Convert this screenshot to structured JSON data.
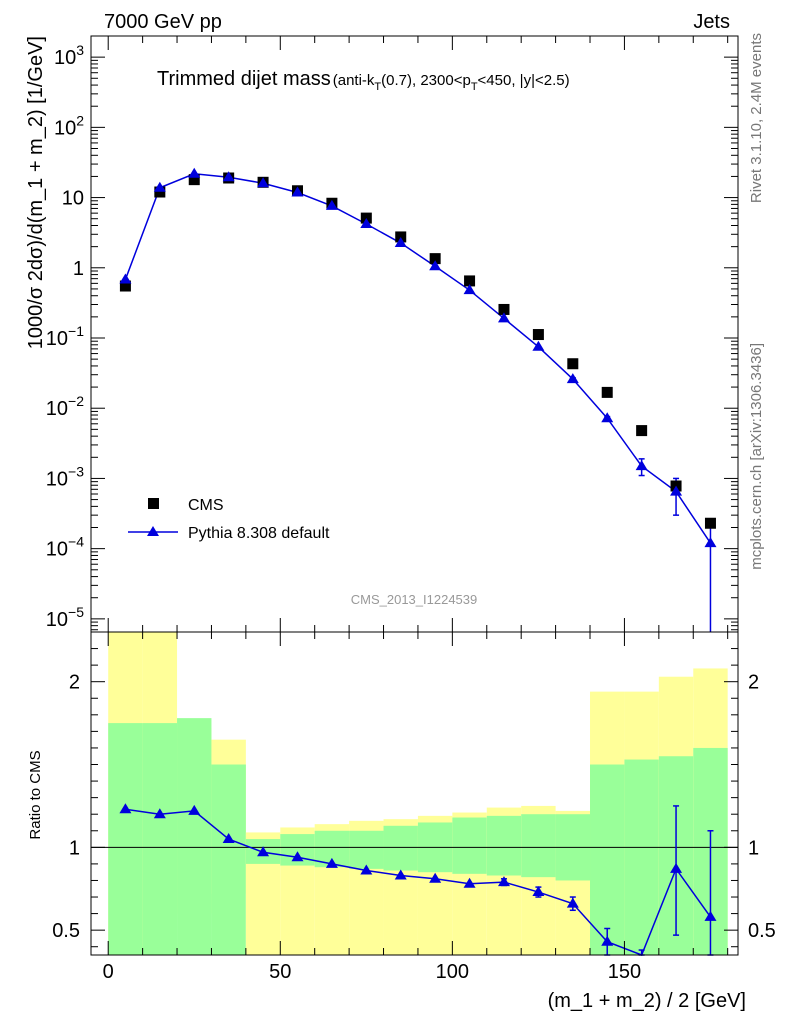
{
  "header": {
    "left": "7000 GeV pp",
    "right": "Jets"
  },
  "side_labels": {
    "rivet": "Rivet 3.1.10,  2.4M events",
    "mcplots": "mcplots.cern.ch [arXiv:1306.3436]"
  },
  "watermark": "CMS_2013_I1224539",
  "chart_data": [
    {
      "type": "scatter",
      "title_main": "Trimmed dijet mass",
      "title_sub": {
        "p1": "(anti-k",
        "s1": "T",
        "p2": "(0.7), 2300<p",
        "s2": "T",
        "p3": "<450, |y|<2.5)"
      },
      "ylabel": "1000/σ 2dσ)/d(m_1 + m_2) [1/GeV]",
      "y_scale": "log",
      "ylim": [
        6.5e-06,
        2000
      ],
      "xlim": [
        -5,
        183
      ],
      "y_ticks": [
        {
          "value": 1000,
          "label": "10",
          "exp": "3"
        },
        {
          "value": 100,
          "label": "10",
          "exp": "2"
        },
        {
          "value": 10,
          "label": "10",
          "exp": ""
        },
        {
          "value": 1,
          "label": "1",
          "exp": ""
        },
        {
          "value": 0.1,
          "label": "10",
          "exp": "−1"
        },
        {
          "value": 0.01,
          "label": "10",
          "exp": "−2"
        },
        {
          "value": 0.001,
          "label": "10",
          "exp": "−3"
        },
        {
          "value": 0.0001,
          "label": "10",
          "exp": "−4"
        },
        {
          "value": 1e-05,
          "label": "10",
          "exp": "−5"
        }
      ],
      "legend": {
        "position": "bottom-left",
        "cms": "CMS",
        "pythia": "Pythia 8.308 default"
      },
      "x": [
        5,
        15,
        25,
        35,
        45,
        55,
        65,
        75,
        85,
        95,
        105,
        115,
        125,
        135,
        145,
        155,
        165,
        175
      ],
      "series": [
        {
          "name": "CMS",
          "marker": "square",
          "color": "#000000",
          "values": [
            0.55,
            12,
            18,
            19,
            16.5,
            12.5,
            8.3,
            5.1,
            2.75,
            1.35,
            0.65,
            0.255,
            0.112,
            0.043,
            0.0168,
            0.0048,
            0.00078,
            0.00023
          ]
        },
        {
          "name": "Pythia 8.308 default",
          "marker": "triangle",
          "color": "#0000dd",
          "values": [
            0.68,
            13.8,
            21.8,
            19.5,
            16,
            11.8,
            7.6,
            4.2,
            2.25,
            1.05,
            0.48,
            0.19,
            0.075,
            0.026,
            0.0072,
            0.0015,
            0.00065,
            0.00012
          ],
          "err_low": [
            0,
            0,
            0,
            0,
            0,
            0,
            0,
            0,
            0,
            0,
            0,
            0,
            0,
            0.0012,
            0.0004,
            0.0004,
            0.00035,
            0.00012
          ],
          "err_high": [
            0,
            0,
            0,
            0,
            0,
            0,
            0,
            0,
            0,
            0,
            0,
            0,
            0,
            0.0012,
            0.0004,
            0.0004,
            0.00035,
            0.0001
          ]
        }
      ]
    },
    {
      "type": "line",
      "ylabel": "Ratio to CMS",
      "xlabel": "(m_1 + m_2) / 2 [GeV]",
      "ylim": [
        0.35,
        2.3
      ],
      "xlim": [
        -5,
        183
      ],
      "x_ticks": [
        0,
        50,
        100,
        150
      ],
      "y_ticks": [
        0.5,
        1,
        2
      ],
      "bands": {
        "edges": [
          0,
          10,
          20,
          30,
          40,
          50,
          60,
          70,
          80,
          90,
          100,
          110,
          120,
          130,
          140,
          150,
          160,
          170,
          180
        ],
        "green_low": [
          0.35,
          0.35,
          0.35,
          0.35,
          0.9,
          0.89,
          0.88,
          0.87,
          0.86,
          0.85,
          0.84,
          0.83,
          0.82,
          0.8,
          0.35,
          0.35,
          0.35,
          0.35
        ],
        "green_high": [
          1.75,
          1.75,
          1.78,
          1.5,
          1.05,
          1.08,
          1.1,
          1.1,
          1.13,
          1.15,
          1.18,
          1.19,
          1.2,
          1.2,
          1.5,
          1.53,
          1.55,
          1.6
        ],
        "yellow_low": [
          0.35,
          0.35,
          0.6,
          0.72,
          0.35,
          0.35,
          0.35,
          0.35,
          0.35,
          0.35,
          0.35,
          0.35,
          0.35,
          0.35,
          0.35,
          0.35,
          0.35,
          0.35
        ],
        "yellow_high": [
          2.3,
          2.3,
          1.72,
          1.65,
          1.09,
          1.12,
          1.14,
          1.16,
          1.17,
          1.19,
          1.21,
          1.24,
          1.25,
          1.22,
          1.94,
          1.94,
          2.03,
          2.08
        ],
        "green_color": "#99ff99",
        "yellow_color": "#ffff99"
      },
      "series": [
        {
          "name": "Pythia 8.308 default",
          "x": [
            5,
            15,
            25,
            35,
            45,
            55,
            65,
            75,
            85,
            95,
            105,
            115,
            125,
            135,
            145,
            155,
            165,
            175
          ],
          "values": [
            1.23,
            1.2,
            1.22,
            1.05,
            0.97,
            0.94,
            0.9,
            0.86,
            0.83,
            0.81,
            0.78,
            0.79,
            0.73,
            0.66,
            0.43,
            0.3,
            0.87,
            0.58
          ],
          "err_low": [
            0,
            0,
            0,
            0,
            0,
            0,
            0,
            0,
            0,
            0,
            0,
            0.02,
            0.03,
            0.04,
            0.08,
            0.08,
            0.4,
            0.3
          ],
          "err_high": [
            0,
            0,
            0,
            0,
            0,
            0,
            0,
            0,
            0,
            0,
            0,
            0.02,
            0.03,
            0.04,
            0.08,
            0.08,
            0.38,
            0.52
          ],
          "color": "#0000dd"
        }
      ]
    }
  ]
}
